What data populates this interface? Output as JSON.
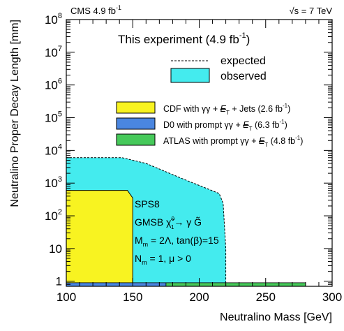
{
  "chart_data": {
    "type": "area",
    "header_left_prefix": "CMS 4.9 fb",
    "header_left_sup": "-1",
    "header_right": "√s = 7 TeV",
    "xlabel": "Neutralino Mass [GeV]",
    "ylabel": "Neutralino Proper Decay Length [mm]",
    "xlim": [
      100,
      300
    ],
    "ylim": [
      0.7,
      100000000
    ],
    "ylog": true,
    "x_ticks": [
      100,
      150,
      200,
      250,
      300
    ],
    "y_ticks": [
      {
        "value": 1,
        "base": "1",
        "exp": ""
      },
      {
        "value": 10,
        "base": "10",
        "exp": ""
      },
      {
        "value": 100,
        "base": "10",
        "exp": "2"
      },
      {
        "value": 1000,
        "base": "10",
        "exp": "3"
      },
      {
        "value": 10000,
        "base": "10",
        "exp": "4"
      },
      {
        "value": 100000,
        "base": "10",
        "exp": "5"
      },
      {
        "value": 1000000,
        "base": "10",
        "exp": "6"
      },
      {
        "value": 10000000,
        "base": "10",
        "exp": "7"
      },
      {
        "value": 100000000,
        "base": "10",
        "exp": "8"
      }
    ],
    "legend_title_prefix": "This experiment (4.9 fb",
    "legend_title_sup": "-1",
    "legend_title_suffix": ")",
    "legend": [
      {
        "name": "expected",
        "style": "dashed"
      },
      {
        "name": "observed",
        "color": "#44ebee"
      }
    ],
    "ref_legend": [
      {
        "color": "#f8f321",
        "pre": "CDF with γγ + ",
        "met": "E",
        "met_sub": "T",
        "post": " + Jets (2.6 fb",
        "sup": "-1",
        "end": ")"
      },
      {
        "color": "#4a86e0",
        "pre": "D0 with prompt γγ + ",
        "met": "E",
        "met_sub": "T",
        "post": " (6.3 fb",
        "sup": "-1",
        "end": ")"
      },
      {
        "color": "#46c95a",
        "pre": "ATLAS with prompt γγ + ",
        "met": "E",
        "met_sub": "T",
        "post": " (4.8 fb",
        "sup": "-1",
        "end": ")"
      }
    ],
    "annotation": {
      "line1": "SPS8",
      "line2_pre": "GMSB ",
      "line2_chi": "χ̃",
      "line2_chi_sup": "0",
      "line2_chi_sub": "1",
      "line2_post": "→ γ G̃",
      "line3": "M",
      "line3_sub": "m",
      "line3_post": " = 2Λ, tan(β)=15",
      "line4": "N",
      "line4_sub": "m",
      "line4_post": " = 1, μ > 0"
    },
    "series": [
      {
        "name": "observed",
        "color": "#44ebee",
        "points": [
          [
            100,
            6000
          ],
          [
            142,
            6000
          ],
          [
            160,
            4000
          ],
          [
            185,
            1500
          ],
          [
            215,
            480
          ],
          [
            218,
            240
          ],
          [
            220,
            10
          ],
          [
            220,
            0.7
          ]
        ]
      },
      {
        "name": "expected",
        "style": "dashed",
        "points": [
          [
            100,
            6000
          ],
          [
            142,
            6000
          ],
          [
            160,
            4000
          ],
          [
            185,
            1500
          ],
          [
            215,
            480
          ],
          [
            218,
            240
          ],
          [
            220,
            10
          ],
          [
            220,
            0.7
          ]
        ]
      },
      {
        "name": "CDF",
        "color": "#f8f321",
        "points": [
          [
            100,
            600
          ],
          [
            146,
            600
          ],
          [
            150,
            350
          ],
          [
            150,
            0.7
          ]
        ]
      },
      {
        "name": "D0",
        "color": "#4a86e0",
        "x_range": [
          100,
          175
        ],
        "y_range": [
          0.7,
          0.9
        ]
      },
      {
        "name": "ATLAS",
        "color": "#46c95a",
        "x_range": [
          175,
          280
        ],
        "y_range": [
          0.7,
          0.9
        ]
      }
    ]
  }
}
